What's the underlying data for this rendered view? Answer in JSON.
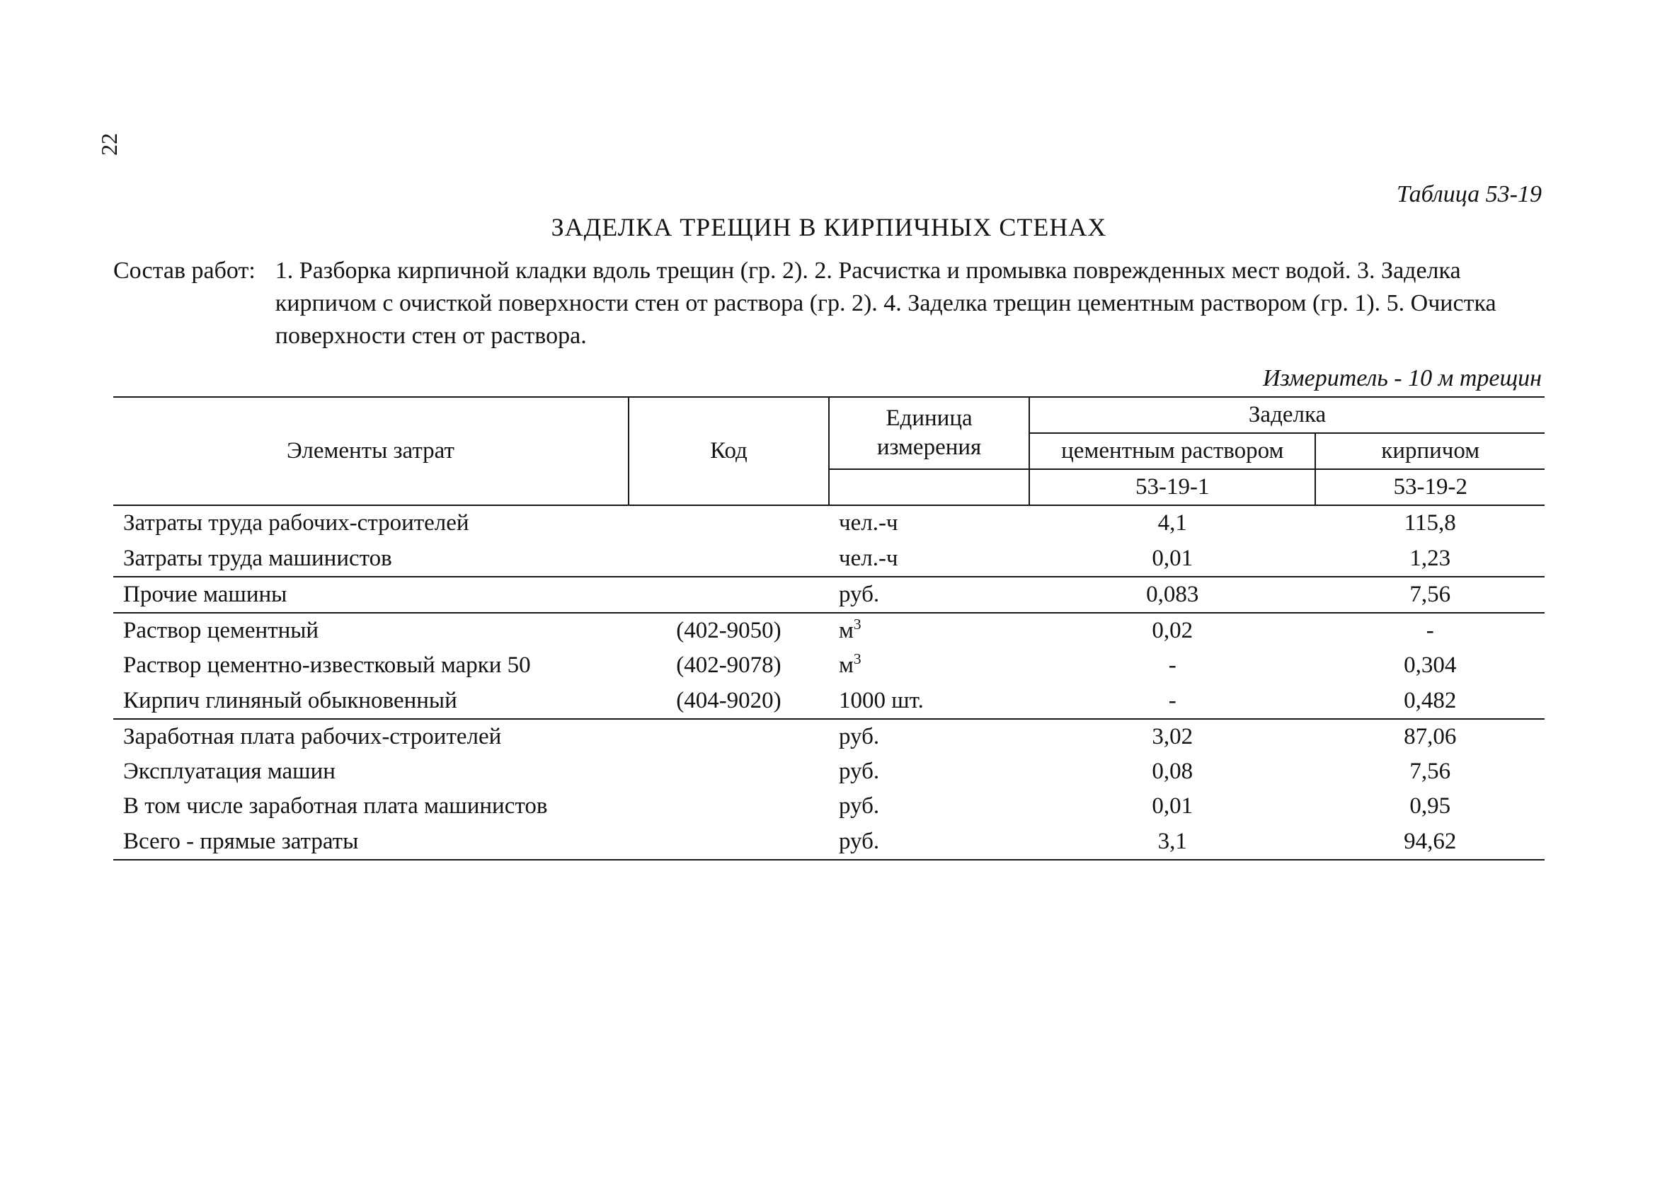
{
  "pageNumber": "22",
  "tableLabel": "Таблица 53-19",
  "title": "ЗАДЕЛКА ТРЕЩИН В КИРПИЧНЫХ СТЕНАХ",
  "works": {
    "label": "Состав работ:",
    "body": "1. Разборка кирпичной кладки вдоль трещин (гр. 2). 2. Расчистка и промывка поврежденных мест водой. 3. Заделка кирпичом с очисткой поверхности стен от раствора (гр. 2). 4. Заделка трещин цементным раствором (гр. 1). 5. Очистка поверхности стен от раствора."
  },
  "measure": "Измеритель - 10 м трещин",
  "columns": {
    "name": "Элементы затрат",
    "code": "Код",
    "unit": "Единица измерения",
    "groupHeader": "Заделка",
    "col1": "цементным раствором",
    "col2": "кирпичом",
    "code1": "53-19-1",
    "code2": "53-19-2"
  },
  "sections": [
    {
      "rows": [
        {
          "name": "Затраты труда рабочих-строителей",
          "code": "",
          "unit": "чел.-ч",
          "v1": "4,1",
          "v2": "115,8"
        },
        {
          "name": "Затраты труда машинистов",
          "code": "",
          "unit": "чел.-ч",
          "v1": "0,01",
          "v2": "1,23"
        }
      ]
    },
    {
      "rows": [
        {
          "name": "Прочие машины",
          "code": "",
          "unit": "руб.",
          "v1": "0,083",
          "v2": "7,56"
        }
      ]
    },
    {
      "rows": [
        {
          "name": "Раствор цементный",
          "code": "(402-9050)",
          "unit": "м³",
          "v1": "0,02",
          "v2": "-"
        },
        {
          "name": "Раствор цементно-известковый марки 50",
          "code": "(402-9078)",
          "unit": "м³",
          "v1": "-",
          "v2": "0,304"
        },
        {
          "name": "Кирпич глиняный обыкновенный",
          "code": "(404-9020)",
          "unit": "1000 шт.",
          "v1": "-",
          "v2": "0,482"
        }
      ]
    },
    {
      "rows": [
        {
          "name": "Заработная плата рабочих-строителей",
          "code": "",
          "unit": "руб.",
          "v1": "3,02",
          "v2": "87,06"
        },
        {
          "name": "Эксплуатация машин",
          "code": "",
          "unit": "руб.",
          "v1": "0,08",
          "v2": "7,56"
        },
        {
          "name": "В том числе заработная плата машинистов",
          "code": "",
          "unit": "руб.",
          "v1": "0,01",
          "v2": "0,95"
        },
        {
          "name": "Всего - прямые затраты",
          "code": "",
          "unit": "руб.",
          "v1": "3,1",
          "v2": "94,62"
        }
      ]
    }
  ],
  "colWidths": {
    "name": "36%",
    "code": "14%",
    "unit": "14%",
    "v1": "20%",
    "v2": "16%"
  },
  "style": {
    "background": "#ffffff",
    "text": "#151310",
    "rule": "#1a1816",
    "fontFamily": "Times New Roman",
    "baseFontSize": 33
  }
}
